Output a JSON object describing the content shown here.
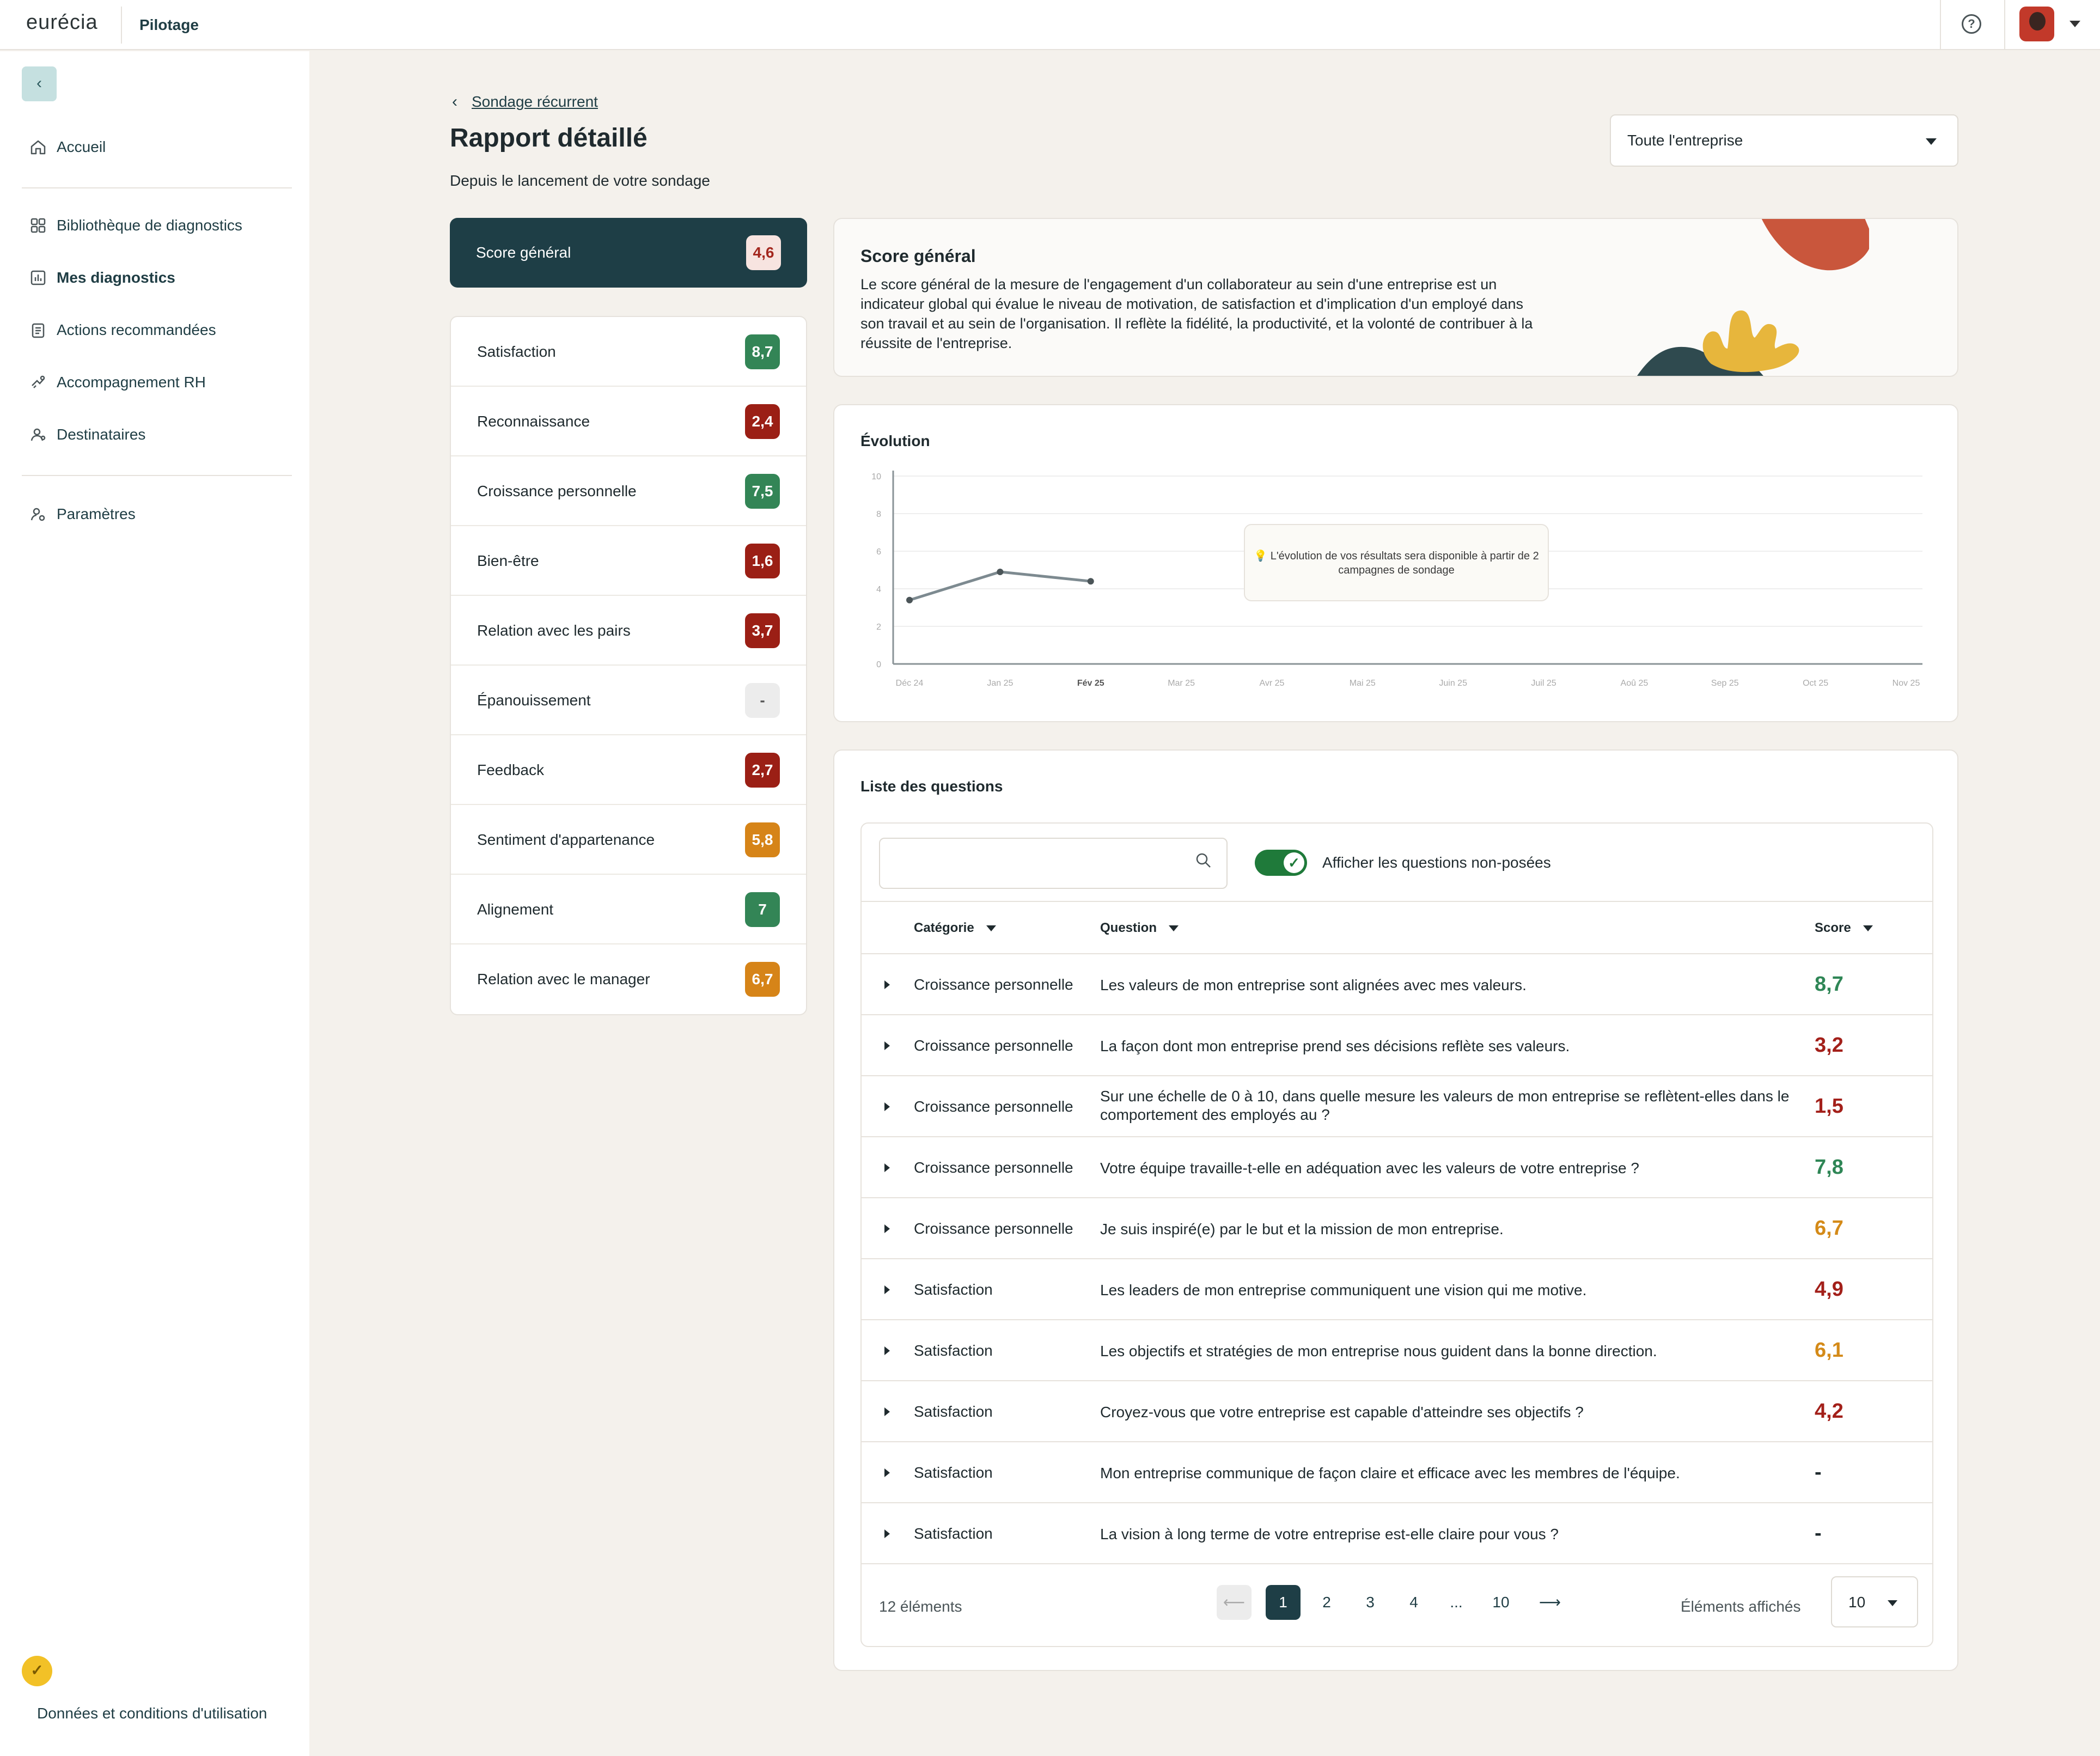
{
  "topbar": {
    "logo": "eurécia",
    "app_name": "Pilotage",
    "help_icon": "question-circle-icon"
  },
  "sidebar": {
    "items": [
      {
        "label": "Accueil",
        "icon": "home-icon"
      },
      {
        "label": "Bibliothèque de diagnostics",
        "icon": "grid-icon"
      },
      {
        "label": "Mes diagnostics",
        "icon": "chart-icon",
        "active": true
      },
      {
        "label": "Actions recommandées",
        "icon": "clipboard-icon"
      },
      {
        "label": "Accompagnement RH",
        "icon": "handshake-icon"
      },
      {
        "label": "Destinataires",
        "icon": "users-icon"
      },
      {
        "label": "Paramètres",
        "icon": "settings-icon"
      }
    ],
    "footer_link": "Données et conditions d'utilisation"
  },
  "header": {
    "breadcrumb": "Sondage récurrent",
    "title": "Rapport détaillé",
    "subtitle": "Depuis le lancement de votre sondage",
    "scope_select": "Toute l'entreprise"
  },
  "scores": {
    "general": {
      "label": "Score général",
      "value": "4,6"
    },
    "categories": [
      {
        "label": "Satisfaction",
        "value": "8,7",
        "color": "green"
      },
      {
        "label": "Reconnaissance",
        "value": "2,4",
        "color": "red"
      },
      {
        "label": "Croissance personnelle",
        "value": "7,5",
        "color": "green"
      },
      {
        "label": "Bien-être",
        "value": "1,6",
        "color": "red"
      },
      {
        "label": "Relation avec les pairs",
        "value": "3,7",
        "color": "red"
      },
      {
        "label": "Épanouissement",
        "value": "-",
        "color": "grey"
      },
      {
        "label": "Feedback",
        "value": "2,7",
        "color": "red"
      },
      {
        "label": "Sentiment d'appartenance",
        "value": "5,8",
        "color": "orange"
      },
      {
        "label": "Alignement",
        "value": "7",
        "color": "green"
      },
      {
        "label": "Relation avec le manager",
        "value": "6,7",
        "color": "orange"
      }
    ]
  },
  "overview": {
    "title": "Score général",
    "description": "Le score général de la mesure de l'engagement d'un collaborateur au sein d'une entreprise est un indicateur global qui évalue le niveau de motivation, de satisfaction et d'implication d'un employé dans son travail et au sein de l'organisation. Il reflète la fidélité, la productivité, et la volonté de contribuer à la réussite de l'entreprise."
  },
  "evolution": {
    "title": "Évolution",
    "tooltip": "💡 L'évolution de vos résultats sera disponible à partir de 2 campagnes de sondage"
  },
  "chart_data": {
    "type": "line",
    "x": [
      "Déc 24",
      "Jan 25",
      "Fév 25",
      "Mar 25",
      "Avr 25",
      "Mai 25",
      "Juin 25",
      "Juil 25",
      "Aoû 25",
      "Sep 25",
      "Oct 25",
      "Nov 25"
    ],
    "series": [
      {
        "values": [
          3.4,
          4.9,
          4.4,
          null,
          null,
          null,
          null,
          null,
          null,
          null,
          null,
          null
        ]
      }
    ],
    "yticks": [
      "0",
      "2",
      "4",
      "6",
      "8",
      "10"
    ],
    "ylim": [
      0,
      10
    ],
    "grid": true,
    "highlight_x": "Fév 25",
    "line_color": "#7d8a90"
  },
  "questions": {
    "title": "Liste des questions",
    "search_placeholder": "",
    "toggle_label": "Afficher les questions non-posées",
    "columns": [
      "Catégorie",
      "Question",
      "Score"
    ],
    "rows": [
      {
        "category": "Croissance personnelle",
        "question": "Les valeurs de mon entreprise sont alignées avec mes valeurs.",
        "score": "8,7",
        "color": "tg"
      },
      {
        "category": "Croissance personnelle",
        "question": "La façon dont mon entreprise prend ses décisions reflète ses valeurs.",
        "score": "3,2",
        "color": "tr"
      },
      {
        "category": "Croissance personnelle",
        "question": "Sur une échelle de 0 à 10, dans quelle mesure les valeurs de mon entreprise se reflètent-elles dans le comportement des employés au ?",
        "score": "1,5",
        "color": "tr"
      },
      {
        "category": "Croissance personnelle",
        "question": "Votre équipe travaille-t-elle en adéquation avec les valeurs de votre entreprise ?",
        "score": "7,8",
        "color": "tg"
      },
      {
        "category": "Croissance personnelle",
        "question": "Je suis inspiré(e) par le but et la mission de mon entreprise.",
        "score": "6,7",
        "color": "to"
      },
      {
        "category": "Satisfaction",
        "question": "Les leaders de mon entreprise communiquent une vision qui me motive.",
        "score": "4,9",
        "color": "tr"
      },
      {
        "category": "Satisfaction",
        "question": "Les objectifs et stratégies de mon entreprise nous guident dans la bonne direction.",
        "score": "6,1",
        "color": "to"
      },
      {
        "category": "Satisfaction",
        "question": "Croyez-vous que votre entreprise est capable d'atteindre ses objectifs ?",
        "score": "4,2",
        "color": "tr"
      },
      {
        "category": "Satisfaction",
        "question": "Mon entreprise communique de façon claire et efficace avec les membres de l'équipe.",
        "score": "-",
        "color": "td"
      },
      {
        "category": "Satisfaction",
        "question": "La vision à long terme de votre entreprise est-elle claire pour vous ?",
        "score": "-",
        "color": "td"
      }
    ],
    "total": "12 éléments",
    "pages": [
      "1",
      "2",
      "3",
      "4",
      "...",
      "10"
    ],
    "prev": "⟵",
    "next": "⟶",
    "per_page_label": "Éléments affichés",
    "per_page": "10"
  }
}
